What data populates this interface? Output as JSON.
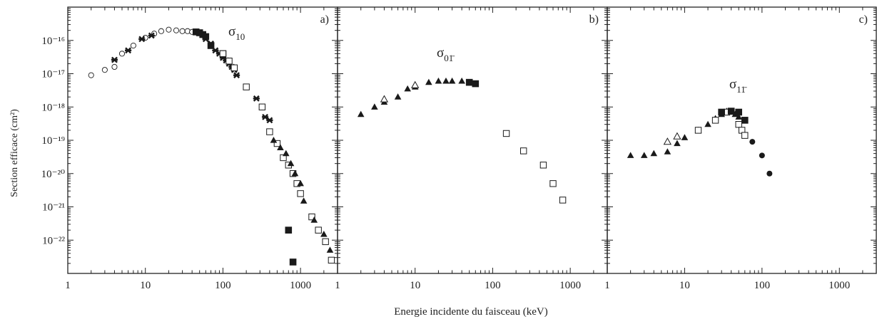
{
  "figure": {
    "ylabel": "Section efficace (cm²)",
    "xlabel": "Energie incidente du faisceau (keV)",
    "x_ticks": [
      "1",
      "10",
      "100",
      "1000"
    ],
    "y_ticks": [
      "10⁻²²",
      "10⁻²¹",
      "10⁻²⁰",
      "10⁻¹⁹",
      "10⁻¹⁸",
      "10⁻¹⁷",
      "10⁻¹⁶"
    ],
    "colors": {
      "marker": "#1a1a1a",
      "axis": "#222222",
      "background": "#ffffff"
    }
  },
  "chart_data": [
    {
      "type": "scatter",
      "panel_label": "a)",
      "annotation": "σ10",
      "xscale": "log",
      "yscale": "log",
      "xlim": [
        1,
        3000
      ],
      "ylim": [
        1e-23,
        1e-15
      ],
      "series": [
        {
          "marker": "open-circle",
          "points": [
            [
              2,
              9e-18
            ],
            [
              3,
              1.3e-17
            ],
            [
              4,
              1.6e-17
            ],
            [
              5,
              4e-17
            ],
            [
              7,
              7e-17
            ],
            [
              10,
              1.2e-16
            ],
            [
              13,
              1.6e-16
            ],
            [
              16,
              1.9e-16
            ],
            [
              20,
              2.1e-16
            ],
            [
              25,
              2e-16
            ],
            [
              30,
              1.9e-16
            ],
            [
              35,
              1.9e-16
            ],
            [
              40,
              1.8e-16
            ]
          ]
        },
        {
          "marker": "star",
          "points": [
            [
              4,
              2.6e-17
            ],
            [
              6,
              5e-17
            ],
            [
              9,
              1.1e-16
            ],
            [
              12,
              1.4e-16
            ],
            [
              60,
              1.1e-16
            ],
            [
              70,
              8e-17
            ],
            [
              80,
              5e-17
            ],
            [
              90,
              4e-17
            ],
            [
              100,
              3e-17
            ],
            [
              110,
              2.5e-17
            ],
            [
              120,
              2e-17
            ],
            [
              130,
              1.6e-17
            ],
            [
              140,
              1.3e-17
            ],
            [
              150,
              9e-18
            ],
            [
              270,
              1.8e-18
            ],
            [
              350,
              5e-19
            ],
            [
              400,
              4e-19
            ]
          ]
        },
        {
          "marker": "filled-square",
          "points": [
            [
              45,
              1.8e-16
            ],
            [
              50,
              1.7e-16
            ],
            [
              55,
              1.5e-16
            ],
            [
              60,
              1.3e-16
            ],
            [
              70,
              7e-17
            ],
            [
              100,
              4e-17
            ],
            [
              700,
              2e-22
            ],
            [
              800,
              2.2e-23
            ]
          ]
        },
        {
          "marker": "open-square",
          "points": [
            [
              100,
              4e-17
            ],
            [
              120,
              2.4e-17
            ],
            [
              140,
              1.5e-17
            ],
            [
              200,
              4e-18
            ],
            [
              320,
              1e-18
            ],
            [
              400,
              1.8e-19
            ],
            [
              500,
              8e-20
            ],
            [
              600,
              3e-20
            ],
            [
              700,
              1.8e-20
            ],
            [
              800,
              1e-20
            ],
            [
              900,
              5e-21
            ],
            [
              1000,
              2.5e-21
            ],
            [
              1400,
              5e-22
            ],
            [
              1700,
              2e-22
            ],
            [
              2100,
              9e-23
            ],
            [
              2500,
              2.5e-23
            ]
          ]
        },
        {
          "marker": "filled-triangle",
          "points": [
            [
              450,
              1e-19
            ],
            [
              550,
              6e-20
            ],
            [
              650,
              4e-20
            ],
            [
              750,
              2e-20
            ],
            [
              850,
              1e-20
            ],
            [
              1000,
              5e-21
            ],
            [
              1100,
              1.5e-21
            ],
            [
              1500,
              4e-22
            ],
            [
              2000,
              1.5e-22
            ],
            [
              2400,
              5e-23
            ]
          ]
        }
      ]
    },
    {
      "type": "scatter",
      "panel_label": "b)",
      "annotation": "σ01̄",
      "xscale": "log",
      "yscale": "log",
      "xlim": [
        1,
        3000
      ],
      "ylim": [
        1e-23,
        1e-15
      ],
      "series": [
        {
          "marker": "filled-triangle",
          "points": [
            [
              2,
              6e-19
            ],
            [
              3,
              1e-18
            ],
            [
              4,
              1.4e-18
            ],
            [
              6,
              2e-18
            ],
            [
              8,
              3.5e-18
            ],
            [
              10,
              4e-18
            ],
            [
              15,
              5.5e-18
            ],
            [
              20,
              6e-18
            ],
            [
              25,
              6e-18
            ],
            [
              30,
              6e-18
            ],
            [
              40,
              6e-18
            ]
          ]
        },
        {
          "marker": "open-triangle",
          "points": [
            [
              4,
              1.7e-18
            ],
            [
              10,
              4.5e-18
            ]
          ]
        },
        {
          "marker": "filled-square",
          "points": [
            [
              50,
              5.5e-18
            ],
            [
              60,
              5e-18
            ]
          ]
        },
        {
          "marker": "open-square",
          "points": [
            [
              150,
              1.6e-19
            ],
            [
              250,
              4.8e-20
            ],
            [
              450,
              1.8e-20
            ],
            [
              600,
              5e-21
            ],
            [
              800,
              1.6e-21
            ]
          ]
        }
      ]
    },
    {
      "type": "scatter",
      "panel_label": "c)",
      "annotation": "σ11̄",
      "xscale": "log",
      "yscale": "log",
      "xlim": [
        1,
        3000
      ],
      "ylim": [
        1e-23,
        1e-15
      ],
      "series": [
        {
          "marker": "filled-triangle",
          "points": [
            [
              2,
              3.5e-20
            ],
            [
              3,
              3.5e-20
            ],
            [
              4,
              4e-20
            ],
            [
              6,
              4.5e-20
            ],
            [
              8,
              8e-20
            ],
            [
              10,
              1.2e-19
            ],
            [
              15,
              2e-19
            ],
            [
              20,
              3e-19
            ],
            [
              25,
              4.5e-19
            ],
            [
              30,
              6e-19
            ],
            [
              35,
              7.5e-19
            ],
            [
              40,
              7e-19
            ],
            [
              45,
              6e-19
            ],
            [
              50,
              5e-19
            ]
          ]
        },
        {
          "marker": "open-triangle",
          "points": [
            [
              6,
              9e-20
            ],
            [
              8,
              1.3e-19
            ]
          ]
        },
        {
          "marker": "open-square",
          "points": [
            [
              15,
              2e-19
            ],
            [
              25,
              4e-19
            ],
            [
              35,
              7e-19
            ],
            [
              50,
              3e-19
            ],
            [
              55,
              2e-19
            ],
            [
              60,
              1.4e-19
            ]
          ]
        },
        {
          "marker": "filled-square",
          "points": [
            [
              30,
              7e-19
            ],
            [
              40,
              7.5e-19
            ],
            [
              50,
              7e-19
            ],
            [
              60,
              4e-19
            ]
          ]
        },
        {
          "marker": "filled-circle",
          "points": [
            [
              75,
              9e-20
            ],
            [
              100,
              3.5e-20
            ],
            [
              125,
              1e-20
            ]
          ]
        }
      ]
    }
  ]
}
